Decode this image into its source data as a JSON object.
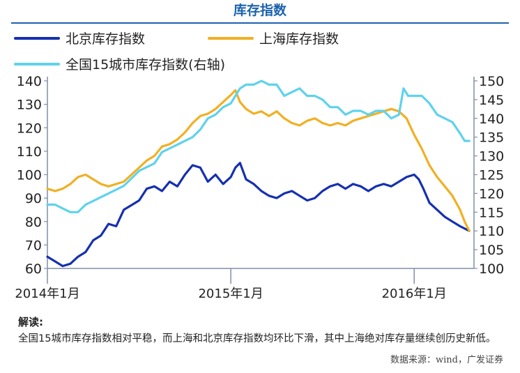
{
  "page": {
    "title": "库存指数",
    "notes_heading": "解读:",
    "notes_text": "全国15城市库存指数相对平稳，而上海和北京库存指数均环比下滑，其中上海绝对库存量继续创历史新低。",
    "source": "数据来源：wind，广发证券"
  },
  "colors": {
    "beijing": "#1530b0",
    "shanghai": "#f0b024",
    "national": "#5fd2ec",
    "title": "#1b62ad",
    "axis": "#7f8fa6"
  },
  "chart_data": {
    "type": "line",
    "title": "库存指数",
    "grid": false,
    "legend_position": "top",
    "x_ticks": [
      {
        "label": "2014年1月",
        "x": 0
      },
      {
        "label": "2015年1月",
        "x": 12
      },
      {
        "label": "2016年1月",
        "x": 24
      }
    ],
    "xlim": [
      0,
      27
    ],
    "y_left": {
      "min": 60,
      "max": 140,
      "ticks": [
        60,
        70,
        80,
        90,
        100,
        110,
        120,
        130,
        140
      ]
    },
    "y_right": {
      "min": 100,
      "max": 150,
      "ticks": [
        100,
        105,
        110,
        115,
        120,
        125,
        130,
        135,
        140,
        145,
        150
      ]
    },
    "series": [
      {
        "name": "北京库存指数",
        "axis": "left",
        "color_key": "beijing",
        "points": [
          [
            0,
            65
          ],
          [
            0.5,
            63
          ],
          [
            1,
            61
          ],
          [
            1.5,
            62
          ],
          [
            2,
            65
          ],
          [
            2.5,
            67
          ],
          [
            3,
            72
          ],
          [
            3.5,
            74
          ],
          [
            4,
            79
          ],
          [
            4.5,
            78
          ],
          [
            5,
            85
          ],
          [
            5.5,
            87
          ],
          [
            6,
            89
          ],
          [
            6.5,
            94
          ],
          [
            7,
            95
          ],
          [
            7.5,
            93
          ],
          [
            8,
            97
          ],
          [
            8.5,
            95
          ],
          [
            9,
            100
          ],
          [
            9.5,
            104
          ],
          [
            10,
            103
          ],
          [
            10.5,
            97
          ],
          [
            11,
            100
          ],
          [
            11.5,
            96
          ],
          [
            12,
            99
          ],
          [
            12.3,
            103
          ],
          [
            12.6,
            105
          ],
          [
            13,
            98
          ],
          [
            13.5,
            96
          ],
          [
            14,
            93
          ],
          [
            14.5,
            91
          ],
          [
            15,
            90
          ],
          [
            15.5,
            92
          ],
          [
            16,
            93
          ],
          [
            16.5,
            91
          ],
          [
            17,
            89
          ],
          [
            17.5,
            90
          ],
          [
            18,
            93
          ],
          [
            18.5,
            95
          ],
          [
            19,
            96
          ],
          [
            19.5,
            94
          ],
          [
            20,
            96
          ],
          [
            20.5,
            95
          ],
          [
            21,
            93
          ],
          [
            21.5,
            95
          ],
          [
            22,
            96
          ],
          [
            22.5,
            95
          ],
          [
            23,
            97
          ],
          [
            23.5,
            99
          ],
          [
            24,
            100
          ],
          [
            24.3,
            98
          ],
          [
            24.6,
            94
          ],
          [
            25,
            88
          ],
          [
            25.5,
            85
          ],
          [
            26,
            82
          ],
          [
            26.5,
            80
          ],
          [
            27,
            78
          ],
          [
            27.3,
            77
          ],
          [
            27.6,
            76
          ]
        ]
      },
      {
        "name": "上海库存指数",
        "axis": "left",
        "color_key": "shanghai",
        "points": [
          [
            0,
            94
          ],
          [
            0.5,
            93
          ],
          [
            1,
            94
          ],
          [
            1.5,
            96
          ],
          [
            2,
            99
          ],
          [
            2.5,
            100
          ],
          [
            3,
            98
          ],
          [
            3.5,
            96
          ],
          [
            4,
            95
          ],
          [
            4.5,
            96
          ],
          [
            5,
            97
          ],
          [
            5.5,
            100
          ],
          [
            6,
            103
          ],
          [
            6.5,
            106
          ],
          [
            7,
            108
          ],
          [
            7.5,
            112
          ],
          [
            8,
            113
          ],
          [
            8.5,
            115
          ],
          [
            9,
            118
          ],
          [
            9.5,
            122
          ],
          [
            10,
            125
          ],
          [
            10.5,
            126
          ],
          [
            11,
            128
          ],
          [
            11.5,
            131
          ],
          [
            12,
            134
          ],
          [
            12.3,
            136
          ],
          [
            12.6,
            131
          ],
          [
            13,
            128
          ],
          [
            13.5,
            126
          ],
          [
            14,
            127
          ],
          [
            14.5,
            125
          ],
          [
            15,
            127
          ],
          [
            15.5,
            124
          ],
          [
            16,
            122
          ],
          [
            16.5,
            121
          ],
          [
            17,
            123
          ],
          [
            17.5,
            124
          ],
          [
            18,
            122
          ],
          [
            18.5,
            121
          ],
          [
            19,
            122
          ],
          [
            19.5,
            121
          ],
          [
            20,
            123
          ],
          [
            20.5,
            124
          ],
          [
            21,
            125
          ],
          [
            21.5,
            126
          ],
          [
            22,
            127
          ],
          [
            22.5,
            128
          ],
          [
            23,
            127
          ],
          [
            23.5,
            124
          ],
          [
            24,
            117
          ],
          [
            24.5,
            111
          ],
          [
            25,
            104
          ],
          [
            25.5,
            99
          ],
          [
            26,
            95
          ],
          [
            26.5,
            91
          ],
          [
            27,
            85
          ],
          [
            27.3,
            80
          ],
          [
            27.6,
            76
          ]
        ]
      },
      {
        "name": "全国15城市库存指数(右轴)",
        "axis": "right",
        "color_key": "national",
        "points": [
          [
            0,
            117
          ],
          [
            0.5,
            117
          ],
          [
            1,
            116
          ],
          [
            1.5,
            115
          ],
          [
            2,
            115
          ],
          [
            2.5,
            117
          ],
          [
            3,
            118
          ],
          [
            3.5,
            119
          ],
          [
            4,
            120
          ],
          [
            4.5,
            121
          ],
          [
            5,
            122
          ],
          [
            5.5,
            124
          ],
          [
            6,
            126
          ],
          [
            6.5,
            127
          ],
          [
            7,
            128
          ],
          [
            7.5,
            131
          ],
          [
            8,
            132
          ],
          [
            8.5,
            133
          ],
          [
            9,
            134
          ],
          [
            9.5,
            135
          ],
          [
            10,
            137
          ],
          [
            10.5,
            140
          ],
          [
            11,
            141
          ],
          [
            11.5,
            143
          ],
          [
            12,
            144
          ],
          [
            12.3,
            146
          ],
          [
            12.6,
            148
          ],
          [
            13,
            149
          ],
          [
            13.5,
            149
          ],
          [
            14,
            150
          ],
          [
            14.5,
            149
          ],
          [
            15,
            149
          ],
          [
            15.5,
            146
          ],
          [
            16,
            147
          ],
          [
            16.5,
            148
          ],
          [
            17,
            146
          ],
          [
            17.5,
            146
          ],
          [
            18,
            145
          ],
          [
            18.5,
            143
          ],
          [
            19,
            143
          ],
          [
            19.5,
            141
          ],
          [
            20,
            142
          ],
          [
            20.5,
            142
          ],
          [
            21,
            141
          ],
          [
            21.5,
            142
          ],
          [
            22,
            142
          ],
          [
            22.5,
            140
          ],
          [
            23,
            141
          ],
          [
            23.3,
            148
          ],
          [
            23.6,
            146
          ],
          [
            24,
            146
          ],
          [
            24.5,
            146
          ],
          [
            25,
            144
          ],
          [
            25.5,
            141
          ],
          [
            26,
            140
          ],
          [
            26.5,
            139
          ],
          [
            27,
            136
          ],
          [
            27.3,
            134
          ],
          [
            27.6,
            134
          ]
        ]
      }
    ]
  }
}
